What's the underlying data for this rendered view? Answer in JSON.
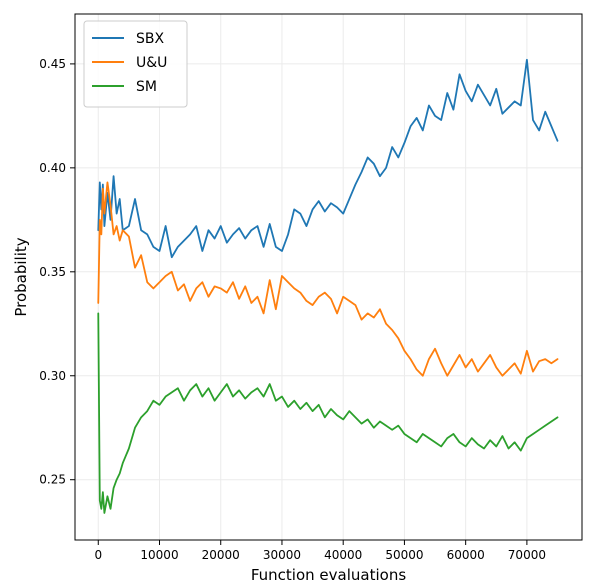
{
  "chart_data": {
    "type": "line",
    "title": "",
    "xlabel": "Function evaluations",
    "ylabel": "Probability",
    "xlim": [
      -3800,
      79000
    ],
    "ylim": [
      0.221,
      0.474
    ],
    "xticks": [
      0,
      10000,
      20000,
      30000,
      40000,
      50000,
      60000,
      70000
    ],
    "yticks": [
      0.25,
      0.3,
      0.35,
      0.4,
      0.45
    ],
    "ytick_labels": [
      "0.25",
      "0.30",
      "0.35",
      "0.40",
      "0.45"
    ],
    "grid": true,
    "legend_position": "top-left",
    "series": [
      {
        "name": "SBX",
        "color": "#1f77b4",
        "x": [
          0,
          250,
          500,
          750,
          1000,
          1500,
          2000,
          2500,
          3000,
          3500,
          4000,
          5000,
          6000,
          7000,
          8000,
          9000,
          10000,
          11000,
          12000,
          13000,
          14000,
          15000,
          16000,
          17000,
          18000,
          19000,
          20000,
          21000,
          22000,
          23000,
          24000,
          25000,
          26000,
          27000,
          28000,
          29000,
          30000,
          31000,
          32000,
          33000,
          34000,
          35000,
          36000,
          37000,
          38000,
          39000,
          40000,
          41000,
          42000,
          43000,
          44000,
          45000,
          46000,
          47000,
          48000,
          49000,
          50000,
          51000,
          52000,
          53000,
          54000,
          55000,
          56000,
          57000,
          58000,
          59000,
          60000,
          61000,
          62000,
          63000,
          64000,
          65000,
          66000,
          67000,
          68000,
          69000,
          70000,
          71000,
          72000,
          73000,
          74000,
          75000
        ],
        "values": [
          0.37,
          0.393,
          0.38,
          0.392,
          0.372,
          0.388,
          0.375,
          0.396,
          0.378,
          0.385,
          0.37,
          0.372,
          0.385,
          0.37,
          0.368,
          0.362,
          0.36,
          0.372,
          0.357,
          0.362,
          0.365,
          0.368,
          0.372,
          0.36,
          0.37,
          0.366,
          0.372,
          0.364,
          0.368,
          0.371,
          0.366,
          0.37,
          0.372,
          0.362,
          0.373,
          0.362,
          0.36,
          0.368,
          0.38,
          0.378,
          0.372,
          0.38,
          0.384,
          0.379,
          0.383,
          0.381,
          0.378,
          0.385,
          0.392,
          0.398,
          0.405,
          0.402,
          0.396,
          0.4,
          0.41,
          0.405,
          0.412,
          0.42,
          0.424,
          0.418,
          0.43,
          0.425,
          0.423,
          0.436,
          0.428,
          0.445,
          0.437,
          0.432,
          0.44,
          0.435,
          0.43,
          0.438,
          0.426,
          0.429,
          0.432,
          0.43,
          0.452,
          0.423,
          0.418,
          0.427,
          0.42,
          0.413
        ]
      },
      {
        "name": "U&U",
        "color": "#ff7f0e",
        "x": [
          0,
          250,
          500,
          750,
          1000,
          1500,
          2000,
          2500,
          3000,
          3500,
          4000,
          5000,
          6000,
          7000,
          8000,
          9000,
          10000,
          11000,
          12000,
          13000,
          14000,
          15000,
          16000,
          17000,
          18000,
          19000,
          20000,
          21000,
          22000,
          23000,
          24000,
          25000,
          26000,
          27000,
          28000,
          29000,
          30000,
          31000,
          32000,
          33000,
          34000,
          35000,
          36000,
          37000,
          38000,
          39000,
          40000,
          41000,
          42000,
          43000,
          44000,
          45000,
          46000,
          47000,
          48000,
          49000,
          50000,
          51000,
          52000,
          53000,
          54000,
          55000,
          56000,
          57000,
          58000,
          59000,
          60000,
          61000,
          62000,
          63000,
          64000,
          65000,
          66000,
          67000,
          68000,
          69000,
          70000,
          71000,
          72000,
          73000,
          74000,
          75000
        ],
        "values": [
          0.335,
          0.375,
          0.368,
          0.39,
          0.378,
          0.393,
          0.382,
          0.368,
          0.372,
          0.365,
          0.37,
          0.367,
          0.352,
          0.358,
          0.345,
          0.342,
          0.345,
          0.348,
          0.35,
          0.341,
          0.344,
          0.336,
          0.342,
          0.345,
          0.338,
          0.343,
          0.342,
          0.34,
          0.345,
          0.337,
          0.343,
          0.335,
          0.338,
          0.33,
          0.346,
          0.332,
          0.348,
          0.345,
          0.342,
          0.34,
          0.336,
          0.334,
          0.338,
          0.34,
          0.337,
          0.33,
          0.338,
          0.336,
          0.334,
          0.327,
          0.33,
          0.328,
          0.332,
          0.325,
          0.322,
          0.318,
          0.312,
          0.308,
          0.303,
          0.3,
          0.308,
          0.313,
          0.306,
          0.3,
          0.305,
          0.31,
          0.304,
          0.308,
          0.302,
          0.306,
          0.31,
          0.304,
          0.3,
          0.303,
          0.306,
          0.301,
          0.312,
          0.302,
          0.307,
          0.308,
          0.306,
          0.308
        ]
      },
      {
        "name": "SM",
        "color": "#2ca02c",
        "x": [
          0,
          250,
          500,
          750,
          1000,
          1500,
          2000,
          2500,
          3000,
          3500,
          4000,
          5000,
          6000,
          7000,
          8000,
          9000,
          10000,
          11000,
          12000,
          13000,
          14000,
          15000,
          16000,
          17000,
          18000,
          19000,
          20000,
          21000,
          22000,
          23000,
          24000,
          25000,
          26000,
          27000,
          28000,
          29000,
          30000,
          31000,
          32000,
          33000,
          34000,
          35000,
          36000,
          37000,
          38000,
          39000,
          40000,
          41000,
          42000,
          43000,
          44000,
          45000,
          46000,
          47000,
          48000,
          49000,
          50000,
          51000,
          52000,
          53000,
          54000,
          55000,
          56000,
          57000,
          58000,
          59000,
          60000,
          61000,
          62000,
          63000,
          64000,
          65000,
          66000,
          67000,
          68000,
          69000,
          70000,
          71000,
          72000,
          73000,
          74000,
          75000
        ],
        "values": [
          0.33,
          0.24,
          0.236,
          0.244,
          0.234,
          0.242,
          0.236,
          0.246,
          0.25,
          0.253,
          0.258,
          0.265,
          0.275,
          0.28,
          0.283,
          0.288,
          0.286,
          0.29,
          0.292,
          0.294,
          0.288,
          0.293,
          0.296,
          0.29,
          0.294,
          0.288,
          0.292,
          0.296,
          0.29,
          0.293,
          0.289,
          0.292,
          0.294,
          0.29,
          0.296,
          0.288,
          0.29,
          0.285,
          0.288,
          0.284,
          0.287,
          0.283,
          0.286,
          0.28,
          0.284,
          0.281,
          0.279,
          0.283,
          0.28,
          0.277,
          0.279,
          0.275,
          0.278,
          0.276,
          0.274,
          0.276,
          0.272,
          0.27,
          0.268,
          0.272,
          0.27,
          0.268,
          0.266,
          0.27,
          0.272,
          0.268,
          0.266,
          0.27,
          0.267,
          0.265,
          0.269,
          0.266,
          0.271,
          0.265,
          0.268,
          0.264,
          0.27,
          0.272,
          0.274,
          0.276,
          0.278,
          0.28
        ]
      }
    ]
  }
}
